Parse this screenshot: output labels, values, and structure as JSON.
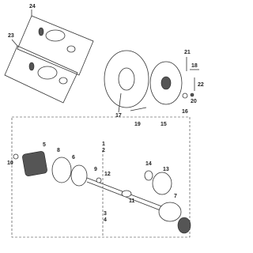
{
  "callouts": [
    "24",
    "23",
    "21",
    "18",
    "22",
    "17",
    "19",
    "15",
    "16",
    "20",
    "5",
    "1",
    "2",
    "6",
    "10",
    "8",
    "9",
    "12",
    "14",
    "13",
    "11",
    "7",
    "3",
    "4"
  ]
}
